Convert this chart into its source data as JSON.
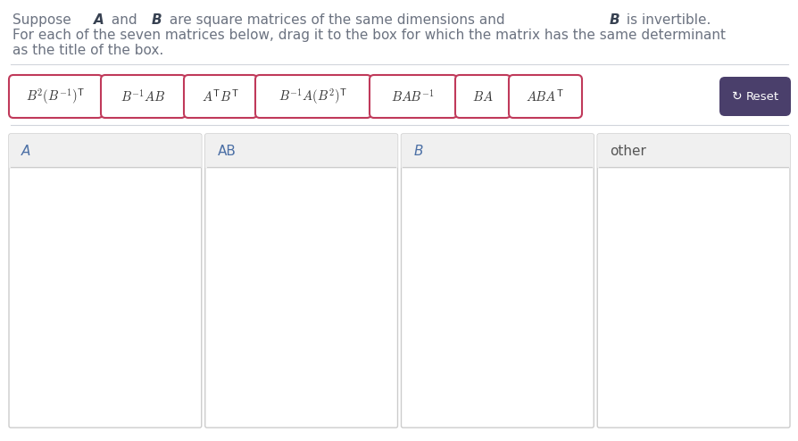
{
  "bg_color": "#ffffff",
  "text_color": "#6b7280",
  "bold_color": "#374151",
  "line1_parts": [
    [
      "Suppose ",
      false
    ],
    [
      "A",
      true
    ],
    [
      " and ",
      false
    ],
    [
      "B",
      true
    ],
    [
      " are square matrices of the same dimensions and ",
      false
    ],
    [
      "B",
      true
    ],
    [
      " is invertible.",
      false
    ]
  ],
  "line2": "For each of the seven matrices below, drag it to the box for which the matrix has the same determinant",
  "line3": "as the title of the box.",
  "matrix_labels": [
    "$B^2(B^{-1})^{\\mathsf{T}}$",
    "$B^{-1}AB$",
    "$A^{\\mathsf{T}}B^{\\mathsf{T}}$",
    "$B^{-1}A(B^2)^{\\mathsf{T}}$",
    "$BAB^{-1}$",
    "$BA$",
    "$ABA^{\\mathsf{T}}$"
  ],
  "matrix_border_color": "#c0395a",
  "matrix_bg_color": "#ffffff",
  "matrix_text_color": "#333333",
  "box_labels": [
    "A",
    "AB",
    "B",
    "other"
  ],
  "box_label_colors": [
    "#4b6fa5",
    "#4b6fa5",
    "#4b6fa5",
    "#555555"
  ],
  "box_bg_header": "#f0f0f0",
  "box_bg_body": "#ffffff",
  "box_border_color": "#cccccc",
  "separator_color": "#d1d5db",
  "reset_bg": "#4a3f6b",
  "reset_text": "#ffffff",
  "reset_label": "C Reset",
  "font_size_text": 11.0,
  "font_size_matrix": 10.5,
  "font_size_box_label": 11.0
}
